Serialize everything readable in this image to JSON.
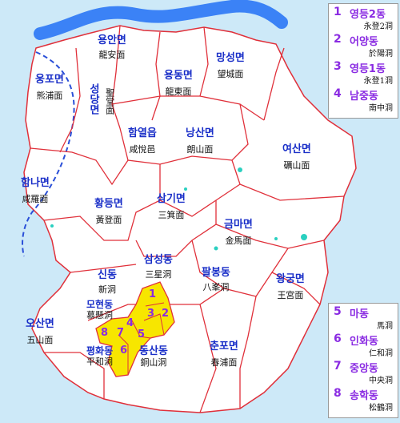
{
  "districts": [
    {
      "id": "yongan",
      "ko": "용안면",
      "hanja": "龍安面"
    },
    {
      "id": "seongdang",
      "ko": "성당면",
      "hanja": "聖堂面"
    },
    {
      "id": "ungpo",
      "ko": "웅포면",
      "hanja": "熊浦面"
    },
    {
      "id": "yongdong",
      "ko": "용동면",
      "hanja": "龍東面"
    },
    {
      "id": "mangseong",
      "ko": "망성면",
      "hanja": "望城面"
    },
    {
      "id": "hamyeol",
      "ko": "함열읍",
      "hanja": "咸悅邑"
    },
    {
      "id": "nangsan",
      "ko": "낭산면",
      "hanja": "朗山面"
    },
    {
      "id": "yeosan",
      "ko": "여산면",
      "hanja": "礪山面"
    },
    {
      "id": "hamna",
      "ko": "함나면",
      "hanja": "咸羅面"
    },
    {
      "id": "hwangdeung",
      "ko": "황등면",
      "hanja": "黃登面"
    },
    {
      "id": "samgi",
      "ko": "삼기면",
      "hanja": "三箕面"
    },
    {
      "id": "geumma",
      "ko": "금마면",
      "hanja": "金馬面"
    },
    {
      "id": "samseong",
      "ko": "삼성동",
      "hanja": "三星洞"
    },
    {
      "id": "sin",
      "ko": "신동",
      "hanja": "新洞"
    },
    {
      "id": "palbong",
      "ko": "팔봉동",
      "hanja": "八峯洞"
    },
    {
      "id": "wanggung",
      "ko": "왕궁면",
      "hanja": "王宮面"
    },
    {
      "id": "mohyeon",
      "ko": "모현동",
      "hanja": "慕懸洞"
    },
    {
      "id": "osan",
      "ko": "오산면",
      "hanja": "五山面"
    },
    {
      "id": "pyeonghwa",
      "ko": "평화동",
      "hanja": "平和洞"
    },
    {
      "id": "dongsan",
      "ko": "동산동",
      "hanja": "銅山洞"
    },
    {
      "id": "chunpo",
      "ko": "춘포면",
      "hanja": "春浦面"
    }
  ],
  "numbers": [
    "1",
    "2",
    "3",
    "4",
    "5",
    "6",
    "7",
    "8"
  ],
  "legend_top": [
    {
      "num": "1",
      "ko": "영등2동",
      "hanja": "永登2洞"
    },
    {
      "num": "2",
      "ko": "어양동",
      "hanja": "於陽洞"
    },
    {
      "num": "3",
      "ko": "영등1동",
      "hanja": "永登1洞"
    },
    {
      "num": "4",
      "ko": "남중동",
      "hanja": "南中洞"
    }
  ],
  "legend_bottom": [
    {
      "num": "5",
      "ko": "마동",
      "hanja": "馬洞"
    },
    {
      "num": "6",
      "ko": "인화동",
      "hanja": "仁和洞"
    },
    {
      "num": "7",
      "ko": "중앙동",
      "hanja": "中央洞"
    },
    {
      "num": "8",
      "ko": "송학동",
      "hanja": "松鶴洞"
    }
  ],
  "colors": {
    "water": "#cde9f8",
    "land": "#ffffff",
    "border": "#e0303a",
    "river": "#3b82f6",
    "city": "#f7e600",
    "label": "#1a2fc8",
    "number": "#8a2be2"
  }
}
